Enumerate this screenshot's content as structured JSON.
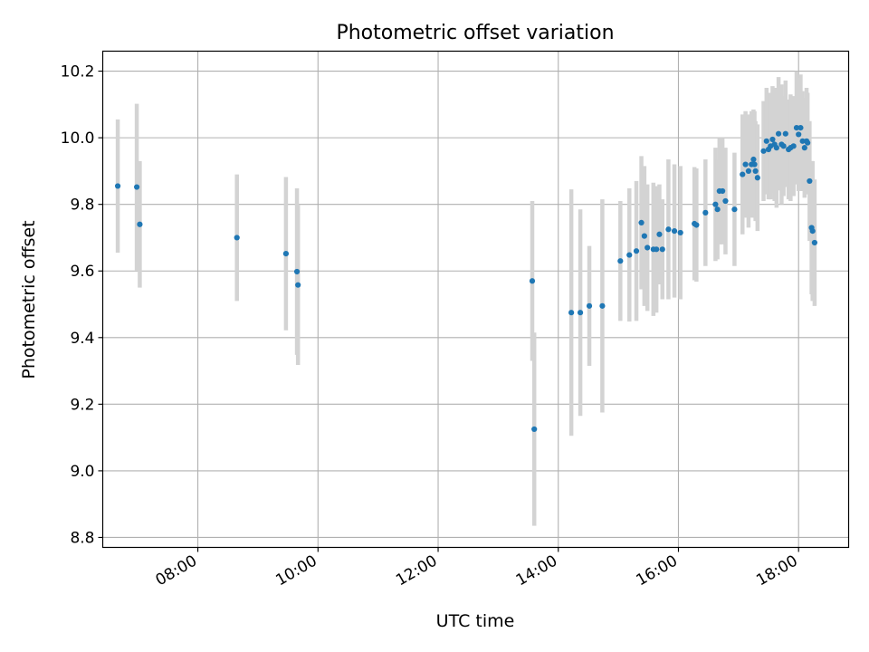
{
  "chart_data": {
    "type": "scatter",
    "title": "Photometric offset variation",
    "xlabel": "UTC time",
    "ylabel": "Photometric offset",
    "x_unit": "hours UTC",
    "xlim": [
      "06:25",
      "18:50"
    ],
    "ylim": [
      8.77,
      10.26
    ],
    "xticks": [
      "08:00",
      "10:00",
      "12:00",
      "14:00",
      "16:00",
      "18:00"
    ],
    "yticks": [
      "8.8",
      "9.0",
      "9.2",
      "9.4",
      "9.6",
      "9.8",
      "10.0",
      "10.2"
    ],
    "grid": true,
    "legend": "none",
    "colors": {
      "points": "#1f77b4",
      "errorbars": "#d3d3d3",
      "grid": "#b0b0b0"
    },
    "series": [
      {
        "x": [
          "06:40",
          "06:59",
          "07:02",
          "08:39",
          "09:28",
          "09:39",
          "09:40",
          "13:34",
          "13:36",
          "14:13",
          "14:22",
          "14:31",
          "14:44",
          "15:02",
          "15:11",
          "15:18",
          "15:23",
          "15:26",
          "15:29",
          "15:35",
          "15:38",
          "15:41",
          "15:44",
          "15:50",
          "15:56",
          "16:02",
          "16:16",
          "16:18",
          "16:27",
          "16:37",
          "16:39",
          "16:41",
          "16:44",
          "16:47",
          "16:56",
          "17:04",
          "17:07",
          "17:10",
          "17:13",
          "17:15",
          "17:16",
          "17:17",
          "17:19",
          "17:25",
          "17:28",
          "17:30",
          "17:32",
          "17:34",
          "17:36",
          "17:38",
          "17:40",
          "17:43",
          "17:45",
          "17:47",
          "17:50",
          "17:52",
          "17:55",
          "17:58",
          "18:00",
          "18:02",
          "18:04",
          "18:06",
          "18:08",
          "18:09",
          "18:11",
          "18:13",
          "18:14",
          "18:16"
        ],
        "y": [
          9.855,
          9.852,
          9.74,
          9.7,
          9.652,
          9.598,
          9.558,
          9.57,
          9.125,
          9.475,
          9.475,
          9.495,
          9.495,
          9.63,
          9.648,
          9.66,
          9.745,
          9.705,
          9.67,
          9.665,
          9.665,
          9.71,
          9.665,
          9.725,
          9.72,
          9.715,
          9.742,
          9.738,
          9.775,
          9.8,
          9.785,
          9.84,
          9.84,
          9.81,
          9.785,
          9.89,
          9.92,
          9.9,
          9.92,
          9.935,
          9.92,
          9.9,
          9.88,
          9.96,
          9.99,
          9.965,
          9.975,
          9.995,
          9.98,
          9.97,
          10.012,
          9.98,
          9.975,
          10.012,
          9.965,
          9.97,
          9.975,
          10.03,
          10.01,
          10.03,
          9.99,
          9.97,
          9.99,
          9.985,
          9.87,
          9.73,
          9.72,
          9.685
        ],
        "yerr": [
          0.2,
          0.25,
          0.19,
          0.19,
          0.23,
          0.25,
          0.24,
          0.24,
          0.29,
          0.37,
          0.31,
          0.18,
          0.32,
          0.18,
          0.2,
          0.21,
          0.2,
          0.21,
          0.19,
          0.2,
          0.19,
          0.15,
          0.15,
          0.21,
          0.2,
          0.2,
          0.17,
          0.17,
          0.16,
          0.17,
          0.15,
          0.16,
          0.16,
          0.16,
          0.17,
          0.18,
          0.16,
          0.17,
          0.16,
          0.15,
          0.16,
          0.15,
          0.16,
          0.15,
          0.16,
          0.15,
          0.16,
          0.16,
          0.17,
          0.18,
          0.17,
          0.18,
          0.15,
          0.16,
          0.15,
          0.16,
          0.15,
          0.17,
          0.17,
          0.16,
          0.15,
          0.15,
          0.16,
          0.15,
          0.18,
          0.2,
          0.21,
          0.19
        ]
      }
    ]
  }
}
